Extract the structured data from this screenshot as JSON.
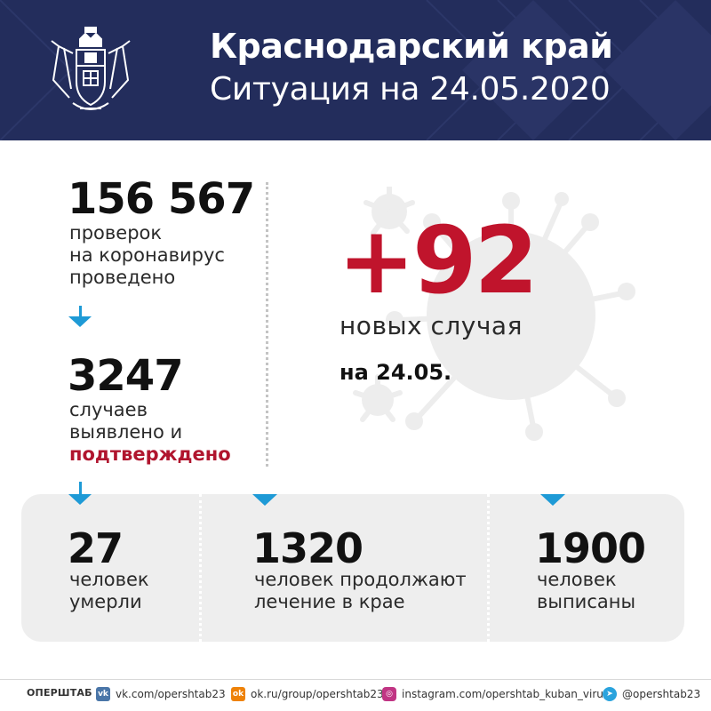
{
  "header": {
    "title": "Краснодарский край",
    "subtitle": "Ситуация на 24.05.2020",
    "emblem_icon": "krasnodar-coat-of-arms-icon",
    "background_color": "#232d5c"
  },
  "stats": {
    "tests": {
      "value": "156 567",
      "label_lines": [
        "проверок",
        "на коронавирус",
        "проведено"
      ]
    },
    "cases": {
      "value": "3247",
      "label_lines": [
        "случаев",
        "выявлено и"
      ],
      "label_highlight": "подтверждено"
    },
    "new_cases": {
      "value": "+92",
      "label": "новых случая",
      "date": "на 24.05."
    },
    "deaths": {
      "value": "27",
      "label_lines": [
        "человек",
        "умерли"
      ]
    },
    "treatment": {
      "value": "1320",
      "label_lines": [
        "человек продолжают",
        "лечение в крае"
      ]
    },
    "recovered": {
      "value": "1900",
      "label_lines": [
        "человек",
        "выписаны"
      ]
    }
  },
  "footer": {
    "label": "ОПЕРШТАБ",
    "links": [
      {
        "icon": "vk-icon",
        "text": "vk.com/opershtab23"
      },
      {
        "icon": "odnoklassniki-icon",
        "text": "ok.ru/group/opershtab23"
      },
      {
        "icon": "instagram-icon",
        "text": "instagram.com/opershtab_kuban_virus/"
      },
      {
        "icon": "telegram-icon",
        "text": "@opershtab23"
      }
    ]
  },
  "colors": {
    "accent_red": "#c0142c",
    "accent_blue": "#1e9ad6",
    "panel_gray": "#eeeeee"
  }
}
